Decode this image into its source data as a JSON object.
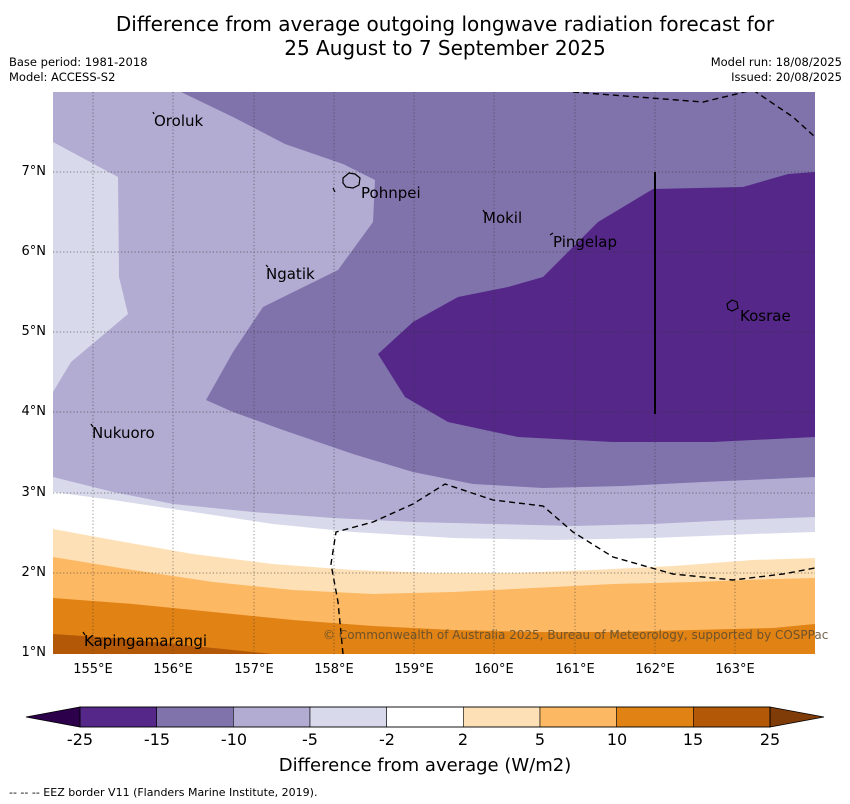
{
  "title_line1": "Difference from average outgoing longwave radiation forecast for",
  "title_line2": "25 August to 7 September 2025",
  "base_period": "Base period: 1981-2018",
  "model": "Model: ACCESS-S2",
  "model_run": "Model run: 18/08/2025",
  "issued": "Issued: 20/08/2025",
  "lat_labels": [
    "7°N",
    "6°N",
    "5°N",
    "4°N",
    "3°N",
    "2°N",
    "1°N"
  ],
  "lon_labels": [
    "155°E",
    "156°E",
    "157°E",
    "158°E",
    "159°E",
    "160°E",
    "161°E",
    "162°E",
    "163°E"
  ],
  "places": {
    "oroluk": "Oroluk",
    "pohnpei": "Pohnpei",
    "mokil": "Mokil",
    "pingelap": "Pingelap",
    "ngatik": "Ngatik",
    "kosrae": "Kosrae",
    "nukuoro": "Nukuoro",
    "kapingamarangi": "Kapingamarangi"
  },
  "copyright": "© Commonwealth of Australia 2025, Bureau of Meteorology, supported by COSPPac",
  "colorbar": {
    "ticks": [
      "-25",
      "-15",
      "-10",
      "-5",
      "-2",
      "2",
      "5",
      "10",
      "15",
      "25"
    ],
    "colors": [
      "#542788",
      "#8073ac",
      "#b2abd2",
      "#d8daeb",
      "#ffffff",
      "#fee0b6",
      "#fdb863",
      "#e08214",
      "#b35806"
    ],
    "under_color": "#2d004b",
    "over_color": "#7f3b08",
    "title": "Difference from average (W/m2)"
  },
  "footnote": "--  --  -- EEZ border V11 (Flanders Marine Institute, 2019)."
}
